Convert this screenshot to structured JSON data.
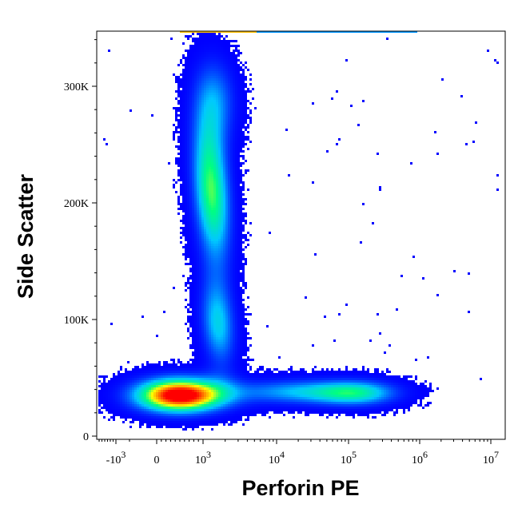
{
  "chart_data": {
    "type": "scatter",
    "subtype": "flow-cytometry density plot (pseudocolor)",
    "title": "",
    "xlabel": "Perforin PE",
    "ylabel": "Side Scatter",
    "xscale": "biexponential",
    "yscale": "linear",
    "ylim": [
      0,
      350000
    ],
    "xlim": [
      -3000,
      10000000
    ],
    "grid": false,
    "legend": "none",
    "x_ticks": [
      {
        "value": -1000,
        "base": "-10",
        "exp": "3"
      },
      {
        "value": 0,
        "base": "0",
        "exp": ""
      },
      {
        "value": 1000,
        "base": "10",
        "exp": "3"
      },
      {
        "value": 10000,
        "base": "10",
        "exp": "4"
      },
      {
        "value": 100000,
        "base": "10",
        "exp": "5"
      },
      {
        "value": 1000000,
        "base": "10",
        "exp": "6"
      },
      {
        "value": 10000000,
        "base": "10",
        "exp": "7"
      }
    ],
    "y_ticks": [
      {
        "value": 0,
        "label": "0"
      },
      {
        "value": 100000,
        "label": "100K"
      },
      {
        "value": 200000,
        "label": "200K"
      },
      {
        "value": 300000,
        "label": "300K"
      }
    ],
    "populations": [
      {
        "name": "PE-negative low SSC",
        "x_center": 500,
        "y_center": 35000,
        "relative_density": 1.0
      },
      {
        "name": "PE-negative high SSC (granulocytes)",
        "x_center": 1300,
        "y_center": 210000,
        "relative_density": 0.6
      },
      {
        "name": "PE-negative mid SSC",
        "x_center": 1500,
        "y_center": 95000,
        "relative_density": 0.35
      },
      {
        "name": "Perforin PE positive",
        "x_center": 130000,
        "y_center": 37000,
        "relative_density": 0.45
      }
    ],
    "colormap": [
      "#0000ff",
      "#00c8ff",
      "#00ff80",
      "#ffff00",
      "#ff8000",
      "#ff0000"
    ]
  }
}
